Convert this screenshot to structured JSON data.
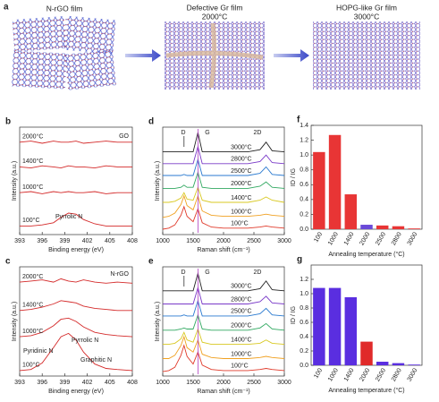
{
  "diagram": {
    "panel": "a",
    "film_1": "N-rGO film",
    "film_2": "Defective Gr film",
    "film_2_temp": "2000°C",
    "film_3": "HOPG-like Gr film",
    "film_3_temp": "3000°C"
  },
  "chart_data": [
    {
      "type": "line",
      "panel": "b",
      "x_label": "Binding energy (eV)",
      "y_label": "Intensity (a.u.)",
      "label_side": "left",
      "annotations": [
        "GO",
        "Pyrrolic N"
      ],
      "x": [
        393,
        394.5,
        396,
        397.5,
        398.5,
        399.5,
        400.5,
        401.5,
        403,
        404.5,
        406,
        408
      ],
      "xlim": [
        393,
        408
      ],
      "xticks": [
        393,
        396,
        399,
        402,
        405,
        408
      ],
      "ylim": [
        0,
        10
      ],
      "series": [
        {
          "name": "2000°C",
          "color": "#d42a2a",
          "values": [
            8.6,
            8.7,
            8.5,
            8.7,
            8.6,
            8.6,
            8.7,
            8.5,
            8.6,
            8.7,
            8.6,
            8.6
          ]
        },
        {
          "name": "1400°C",
          "color": "#d42a2a",
          "values": [
            6.3,
            6.2,
            6.4,
            6.3,
            6.2,
            6.4,
            6.3,
            6.3,
            6.2,
            6.4,
            6.3,
            6.3
          ]
        },
        {
          "name": "1000°C",
          "color": "#d42a2a",
          "values": [
            3.9,
            4.0,
            3.8,
            4.0,
            3.9,
            4.0,
            3.9,
            3.9,
            4.0,
            3.8,
            3.9,
            3.9
          ]
        },
        {
          "name": "100°C",
          "color": "#d42a2a",
          "values": [
            0.8,
            0.8,
            0.9,
            1.1,
            1.6,
            2.0,
            1.9,
            1.4,
            1.0,
            0.8,
            0.8,
            0.8
          ]
        }
      ]
    },
    {
      "type": "line",
      "panel": "c",
      "x_label": "Binding energy (eV)",
      "y_label": "Intensity (a.u.)",
      "label_side": "left",
      "annotations": [
        "N-rGO",
        "Pyrrolic N",
        "Pyridinic N",
        "Graphitic N"
      ],
      "x": [
        393,
        394.5,
        396,
        397.5,
        398.5,
        399.5,
        400.5,
        401.5,
        403,
        404.5,
        406,
        408
      ],
      "xlim": [
        393,
        408
      ],
      "xticks": [
        393,
        396,
        399,
        402,
        405,
        408
      ],
      "ylim": [
        0,
        10
      ],
      "series": [
        {
          "name": "2000°C",
          "color": "#d42a2a",
          "values": [
            8.6,
            8.7,
            8.8,
            8.6,
            8.9,
            8.7,
            8.6,
            8.8,
            8.6,
            8.5,
            8.6,
            8.5
          ]
        },
        {
          "name": "1400°C",
          "color": "#d42a2a",
          "values": [
            6.0,
            6.1,
            6.3,
            6.6,
            6.9,
            6.8,
            6.7,
            6.4,
            6.2,
            6.1,
            6.0,
            6.0
          ]
        },
        {
          "name": "1000°C",
          "color": "#d42a2a",
          "values": [
            3.6,
            3.7,
            4.0,
            4.6,
            5.2,
            5.3,
            5.0,
            4.5,
            4.0,
            3.8,
            3.7,
            3.6
          ]
        },
        {
          "name": "100°C",
          "color": "#d42a2a",
          "values": [
            0.5,
            0.6,
            1.2,
            2.6,
            3.6,
            3.9,
            3.3,
            2.2,
            1.1,
            0.7,
            0.6,
            0.5
          ]
        }
      ]
    },
    {
      "type": "line",
      "panel": "d",
      "x_label": "Raman shift (cm⁻¹)",
      "y_label": "Intensity (a.u.)",
      "label_side": "right",
      "annotations": [
        "D",
        "G",
        "2D"
      ],
      "x": [
        1000,
        1100,
        1200,
        1300,
        1350,
        1400,
        1500,
        1580,
        1650,
        1800,
        2000,
        2200,
        2400,
        2600,
        2700,
        2800,
        3000
      ],
      "xlim": [
        1000,
        3000
      ],
      "xticks": [
        1000,
        1500,
        2000,
        2500,
        3000
      ],
      "ylim": [
        0,
        10
      ],
      "series": [
        {
          "name": "100°C",
          "color": "#e03a2a",
          "values": [
            0.5,
            0.6,
            0.9,
            1.8,
            2.6,
            1.7,
            1.2,
            2.4,
            1.1,
            0.7,
            0.6,
            0.6,
            0.6,
            0.7,
            0.8,
            0.7,
            0.6
          ]
        },
        {
          "name": "1000°C",
          "color": "#f0a020",
          "values": [
            1.6,
            1.7,
            2.0,
            2.8,
            3.6,
            2.7,
            2.3,
            3.6,
            2.2,
            1.8,
            1.7,
            1.7,
            1.7,
            1.8,
            1.9,
            1.8,
            1.7
          ]
        },
        {
          "name": "1400°C",
          "color": "#d8c820",
          "values": [
            3.0,
            3.0,
            3.1,
            3.4,
            3.9,
            3.3,
            3.2,
            4.4,
            3.2,
            3.0,
            3.0,
            3.0,
            3.0,
            3.2,
            3.5,
            3.2,
            3.0
          ]
        },
        {
          "name": "2000°C",
          "color": "#30a860",
          "values": [
            4.3,
            4.3,
            4.3,
            4.4,
            4.6,
            4.4,
            4.4,
            5.8,
            4.4,
            4.3,
            4.3,
            4.3,
            4.3,
            4.5,
            4.9,
            4.4,
            4.3
          ]
        },
        {
          "name": "2500°C",
          "color": "#2a7ad0",
          "values": [
            5.5,
            5.5,
            5.5,
            5.5,
            5.6,
            5.5,
            5.5,
            7.0,
            5.5,
            5.5,
            5.5,
            5.5,
            5.5,
            5.7,
            6.3,
            5.6,
            5.5
          ]
        },
        {
          "name": "2800°C",
          "color": "#7a3ac8",
          "values": [
            6.6,
            6.6,
            6.6,
            6.6,
            6.6,
            6.6,
            6.6,
            8.2,
            6.6,
            6.6,
            6.6,
            6.6,
            6.6,
            6.8,
            7.4,
            6.7,
            6.6
          ]
        },
        {
          "name": "3000°C",
          "color": "#222222",
          "values": [
            7.7,
            7.7,
            7.7,
            7.7,
            7.7,
            7.7,
            7.7,
            9.5,
            7.7,
            7.7,
            7.7,
            7.7,
            7.7,
            7.9,
            8.6,
            7.8,
            7.7
          ]
        }
      ]
    },
    {
      "type": "line",
      "panel": "e",
      "x_label": "Raman shift (cm⁻¹)",
      "y_label": "Intensity (a.u.)",
      "label_side": "right",
      "annotations": [
        "D",
        "G",
        "2D"
      ],
      "x": [
        1000,
        1100,
        1200,
        1300,
        1350,
        1400,
        1500,
        1580,
        1650,
        1800,
        2000,
        2200,
        2400,
        2600,
        2700,
        2800,
        3000
      ],
      "xlim": [
        1000,
        3000
      ],
      "xticks": [
        1000,
        1500,
        2000,
        2500,
        3000
      ],
      "ylim": [
        0,
        10
      ],
      "series": [
        {
          "name": "100°C",
          "color": "#e03a2a",
          "values": [
            0.4,
            0.5,
            0.8,
            1.9,
            2.8,
            1.8,
            1.1,
            2.2,
            1.0,
            0.6,
            0.5,
            0.5,
            0.5,
            0.6,
            0.7,
            0.6,
            0.5
          ]
        },
        {
          "name": "1000°C",
          "color": "#f0a020",
          "values": [
            1.6,
            1.6,
            1.9,
            2.8,
            3.6,
            2.6,
            2.2,
            3.3,
            2.0,
            1.7,
            1.6,
            1.6,
            1.6,
            1.7,
            1.8,
            1.7,
            1.6
          ]
        },
        {
          "name": "1400°C",
          "color": "#d8c820",
          "values": [
            2.9,
            2.9,
            3.0,
            3.4,
            4.0,
            3.3,
            3.1,
            4.3,
            3.1,
            2.9,
            2.9,
            2.9,
            2.9,
            3.0,
            3.3,
            3.0,
            2.9
          ]
        },
        {
          "name": "2000°C",
          "color": "#30a860",
          "values": [
            4.2,
            4.2,
            4.2,
            4.3,
            4.4,
            4.3,
            4.3,
            5.6,
            4.3,
            4.2,
            4.2,
            4.2,
            4.2,
            4.4,
            4.8,
            4.3,
            4.2
          ]
        },
        {
          "name": "2500°C",
          "color": "#2a7ad0",
          "values": [
            5.5,
            5.5,
            5.5,
            5.5,
            5.6,
            5.5,
            5.5,
            6.9,
            5.5,
            5.5,
            5.5,
            5.5,
            5.5,
            5.7,
            6.2,
            5.6,
            5.5
          ]
        },
        {
          "name": "2800°C",
          "color": "#7a3ac8",
          "values": [
            6.6,
            6.6,
            6.6,
            6.6,
            6.6,
            6.6,
            6.6,
            8.1,
            6.6,
            6.6,
            6.6,
            6.6,
            6.6,
            6.8,
            7.3,
            6.7,
            6.6
          ]
        },
        {
          "name": "3000°C",
          "color": "#222222",
          "values": [
            7.8,
            7.8,
            7.8,
            7.8,
            7.8,
            7.8,
            7.8,
            9.4,
            7.8,
            7.8,
            7.8,
            7.8,
            7.8,
            8.0,
            8.7,
            7.9,
            7.8
          ]
        }
      ]
    },
    {
      "type": "bar",
      "panel": "f",
      "x_label": "Annealing temperature (°C)",
      "y_label": "ID / IG",
      "categories": [
        "100",
        "1000",
        "1400",
        "2000",
        "2500",
        "2800",
        "3000"
      ],
      "values": [
        1.04,
        1.27,
        0.47,
        0.06,
        0.05,
        0.04,
        0.01
      ],
      "colors": [
        "#e83535",
        "#e83535",
        "#e83535",
        "#6a4ad8",
        "#e83535",
        "#e83535",
        "#e83535"
      ],
      "ylim": [
        0,
        1.4
      ],
      "yticks": [
        {
          "value": 0,
          "label": "0.0"
        },
        0.2,
        0.4,
        0.6,
        0.8,
        {
          "value": 1,
          "label": "1.0"
        },
        1.2,
        1.4
      ]
    },
    {
      "type": "bar",
      "panel": "g",
      "x_label": "Annealing temperature (°C)",
      "y_label": "ID / IG",
      "categories": [
        "100",
        "1000",
        "1400",
        "2000",
        "2500",
        "2800",
        "3000"
      ],
      "values": [
        1.08,
        1.08,
        0.95,
        0.33,
        0.05,
        0.03,
        0.01
      ],
      "colors": [
        "#5a2ee0",
        "#5a2ee0",
        "#5a2ee0",
        "#e02a2a",
        "#5a2ee0",
        "#5a2ee0",
        "#5a2ee0"
      ],
      "ylim": [
        0,
        1.4
      ],
      "yticks": [
        {
          "value": 0,
          "label": "0.0"
        },
        0.2,
        0.4,
        0.6,
        0.8,
        {
          "value": 1,
          "label": "1.0"
        },
        1.2
      ]
    }
  ]
}
